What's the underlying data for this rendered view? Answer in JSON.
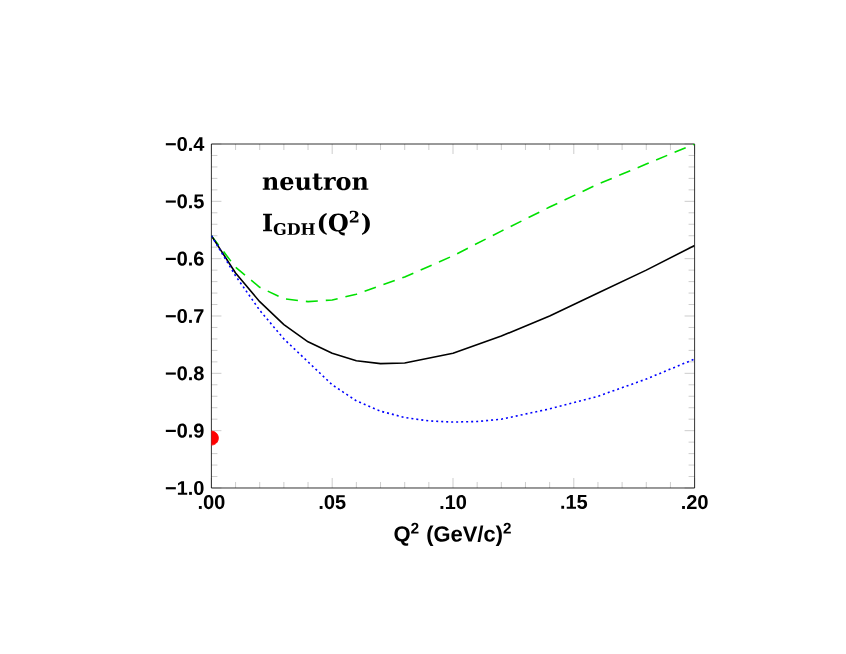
{
  "chart_data": {
    "type": "line",
    "xlabel": "Q$^{2}$   (GeV/c)$^{2}$",
    "annotations": [
      "**neutron**",
      "**I$_{GDH}$(Q$^{2}$)**"
    ],
    "xlim": [
      0,
      0.2
    ],
    "ylim": [
      -1.0,
      -0.4
    ],
    "xticks": [
      {
        "value": 0,
        "label": ".00"
      },
      {
        "value": 0.05,
        "label": ".05"
      },
      {
        "value": 0.1,
        "label": ".10"
      },
      {
        "value": 0.15,
        "label": ".15"
      },
      {
        "value": 0.2,
        "label": ".20"
      }
    ],
    "yticks": [
      {
        "value": -1.0,
        "label": "−1.0"
      },
      {
        "value": -0.9,
        "label": "−0.9"
      },
      {
        "value": -0.8,
        "label": "−0.8"
      },
      {
        "value": -0.7,
        "label": "−0.7"
      },
      {
        "value": -0.6,
        "label": "−0.6"
      },
      {
        "value": -0.5,
        "label": "−0.5"
      },
      {
        "value": -0.4,
        "label": "−0.4"
      }
    ],
    "grid": false,
    "series": [
      {
        "color": "#00e000",
        "line_style": "dashed",
        "x": [
          0,
          0.01,
          0.02,
          0.03,
          0.04,
          0.05,
          0.06,
          0.08,
          0.1,
          0.12,
          0.14,
          0.16,
          0.18,
          0.2
        ],
        "values": [
          -0.56,
          -0.615,
          -0.65,
          -0.67,
          -0.675,
          -0.672,
          -0.662,
          -0.632,
          -0.595,
          -0.552,
          -0.51,
          -0.47,
          -0.435,
          -0.4
        ]
      },
      {
        "color": "#000000",
        "line_style": "solid",
        "x": [
          0,
          0.01,
          0.02,
          0.03,
          0.04,
          0.05,
          0.06,
          0.07,
          0.08,
          0.1,
          0.12,
          0.14,
          0.16,
          0.18,
          0.2
        ],
        "values": [
          -0.56,
          -0.625,
          -0.675,
          -0.715,
          -0.745,
          -0.765,
          -0.778,
          -0.783,
          -0.782,
          -0.765,
          -0.735,
          -0.7,
          -0.66,
          -0.62,
          -0.577
        ]
      },
      {
        "color": "#0000ff",
        "line_style": "dotted",
        "x": [
          0,
          0.01,
          0.02,
          0.03,
          0.04,
          0.05,
          0.06,
          0.07,
          0.08,
          0.09,
          0.1,
          0.11,
          0.12,
          0.14,
          0.16,
          0.18,
          0.2
        ],
        "values": [
          -0.56,
          -0.63,
          -0.69,
          -0.74,
          -0.78,
          -0.82,
          -0.848,
          -0.866,
          -0.877,
          -0.883,
          -0.885,
          -0.884,
          -0.88,
          -0.862,
          -0.84,
          -0.81,
          -0.775
        ]
      },
      {
        "type": "scatter",
        "marker": "circle",
        "color": "#ff0000",
        "x": [
          0
        ],
        "values": [
          -0.913
        ]
      }
    ]
  }
}
